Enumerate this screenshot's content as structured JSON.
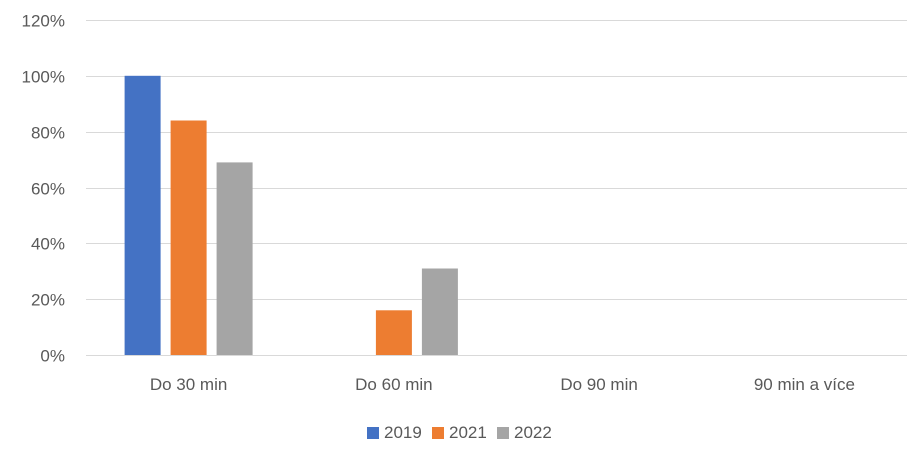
{
  "chart_data": {
    "type": "bar",
    "title": "",
    "xlabel": "",
    "ylabel": "",
    "categories": [
      "Do 30 min",
      "Do 60 min",
      "Do 90 min",
      "90 min a více"
    ],
    "series": [
      {
        "name": "2019",
        "values": [
          100,
          0,
          0,
          0
        ],
        "color": "#4472c4"
      },
      {
        "name": "2021",
        "values": [
          84,
          16,
          0,
          0
        ],
        "color": "#ed7d31"
      },
      {
        "name": "2022",
        "values": [
          69,
          31,
          0,
          0
        ],
        "color": "#a5a5a5"
      }
    ],
    "ylim": [
      0,
      120
    ],
    "yticks": [
      0,
      20,
      40,
      60,
      80,
      100,
      120
    ],
    "ytick_labels": [
      "0%",
      "20%",
      "40%",
      "60%",
      "80%",
      "100%",
      "120%"
    ],
    "grid": true,
    "legend_position": "bottom"
  }
}
